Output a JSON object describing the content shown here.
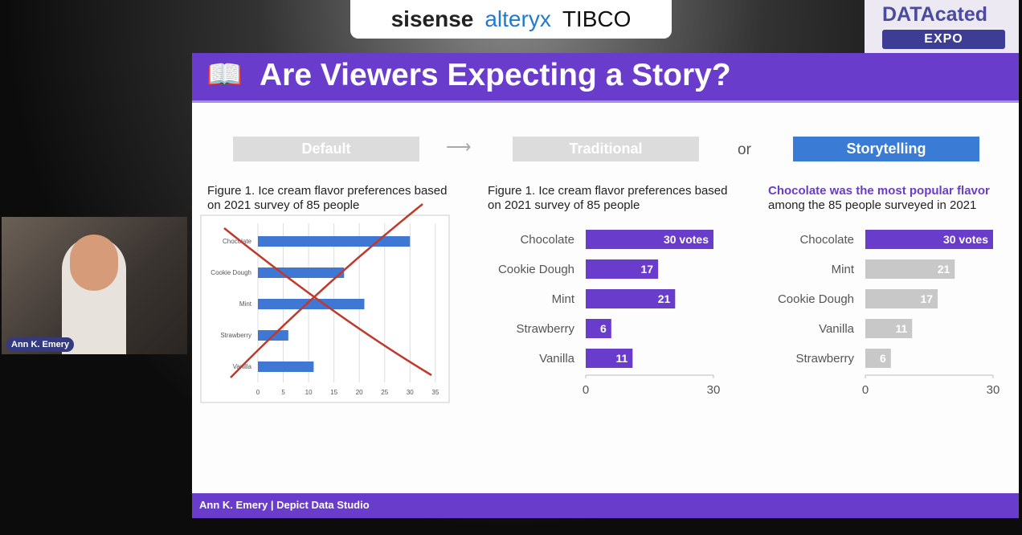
{
  "sponsors": {
    "logos": [
      "sisense",
      "alteryx",
      "TIBCO"
    ]
  },
  "event": {
    "name": "DATAcated",
    "badge": "EXPO"
  },
  "slide": {
    "title": "Are Viewers Expecting a Story?",
    "steps": {
      "default": "Default",
      "traditional": "Traditional",
      "or": "or",
      "storytelling": "Storytelling"
    },
    "footer": "Ann K. Emery  |  Depict Data Studio"
  },
  "webcam": {
    "name": "Ann K. Emery"
  },
  "colors": {
    "purple": "#6a3ccc",
    "excel_blue": "#3f78d4",
    "story_blue": "#3a7bd5",
    "grey": "#c8c8c8",
    "cross": "#c0392b"
  },
  "chart_data": [
    {
      "type": "bar",
      "title": "Figure 1. Ice cream flavor preferences based on 2021 survey of 85 people",
      "categories": [
        "Chocolate",
        "Cookie Dough",
        "Mint",
        "Strawberry",
        "Vanilla"
      ],
      "values": [
        30,
        17,
        21,
        6,
        11
      ],
      "xlim": [
        0,
        35
      ],
      "xticks": [
        "0",
        "5",
        "10",
        "15",
        "20",
        "25",
        "30",
        "35"
      ],
      "grid": true,
      "annotation": "crossed out"
    },
    {
      "type": "bar",
      "title": "Figure 1. Ice cream flavor preferences based on 2021 survey of 85 people",
      "categories": [
        "Chocolate",
        "Cookie Dough",
        "Mint",
        "Strawberry",
        "Vanilla"
      ],
      "values": [
        30,
        17,
        21,
        6,
        11
      ],
      "data_labels": [
        "30 votes",
        "17",
        "21",
        "6",
        "11"
      ],
      "xlim": [
        0,
        30
      ],
      "xticks": [
        "0",
        "30"
      ]
    },
    {
      "type": "bar",
      "title_highlight": "Chocolate was the most popular flavor",
      "title_rest": "among the 85 people surveyed in 2021",
      "categories": [
        "Chocolate",
        "Mint",
        "Cookie Dough",
        "Vanilla",
        "Strawberry"
      ],
      "values": [
        30,
        21,
        17,
        11,
        6
      ],
      "data_labels": [
        "30 votes",
        "21",
        "17",
        "11",
        "6"
      ],
      "highlight": "Chocolate",
      "xlim": [
        0,
        30
      ],
      "xticks": [
        "0",
        "30"
      ]
    }
  ]
}
